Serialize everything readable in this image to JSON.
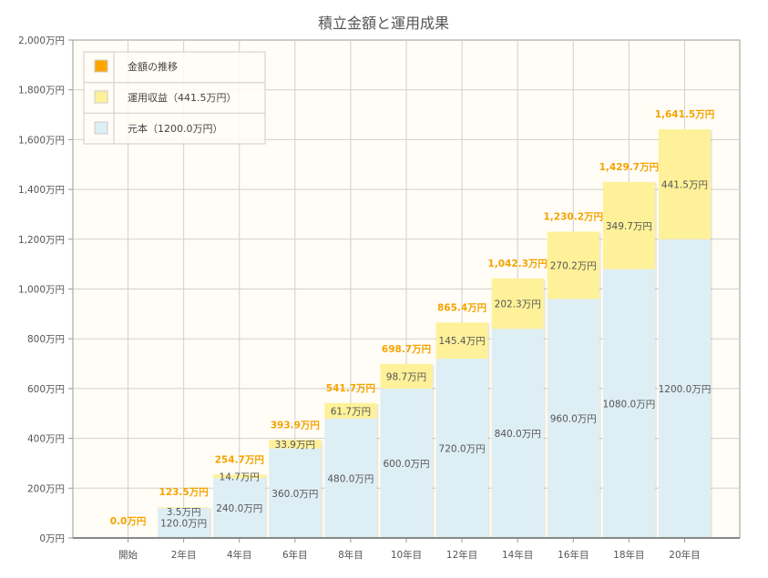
{
  "chart_data": {
    "type": "bar",
    "stacked": true,
    "title": "積立金額と運用成果",
    "categories": [
      "開始",
      "2年目",
      "4年目",
      "6年目",
      "8年目",
      "10年目",
      "12年目",
      "14年目",
      "16年目",
      "18年目",
      "20年目"
    ],
    "series": [
      {
        "name": "元本（1200.0万円）",
        "color": "#deeef5",
        "values": [
          0,
          120.0,
          240.0,
          360.0,
          480.0,
          600.0,
          720.0,
          840.0,
          960.0,
          1080.0,
          1200.0
        ]
      },
      {
        "name": "運用収益（441.5万円）",
        "color": "#fff199",
        "values": [
          0,
          3.5,
          14.7,
          33.9,
          61.7,
          98.7,
          145.4,
          202.3,
          270.2,
          349.7,
          441.5
        ]
      }
    ],
    "totals": {
      "name": "金額の推移",
      "color": "#ffa500",
      "values": [
        0.0,
        123.5,
        254.7,
        393.9,
        541.7,
        698.7,
        865.4,
        1042.3,
        1230.2,
        1429.7,
        1641.5
      ]
    },
    "unit": "万円",
    "ylim": [
      0,
      2000
    ],
    "yticks": [
      "0万円",
      "200万円",
      "400万円",
      "600万円",
      "800万円",
      "1,000万円",
      "1,200万円",
      "1,400万円",
      "1,600万円",
      "1,800万円",
      "2,000万円"
    ],
    "grid": true,
    "legend_position": "top-left",
    "colors": {
      "plot_bg": "#fffdf5",
      "grid": "#d0d0d0",
      "axis": "#999999",
      "total_label": "#f5a300",
      "text": "#555555"
    }
  }
}
